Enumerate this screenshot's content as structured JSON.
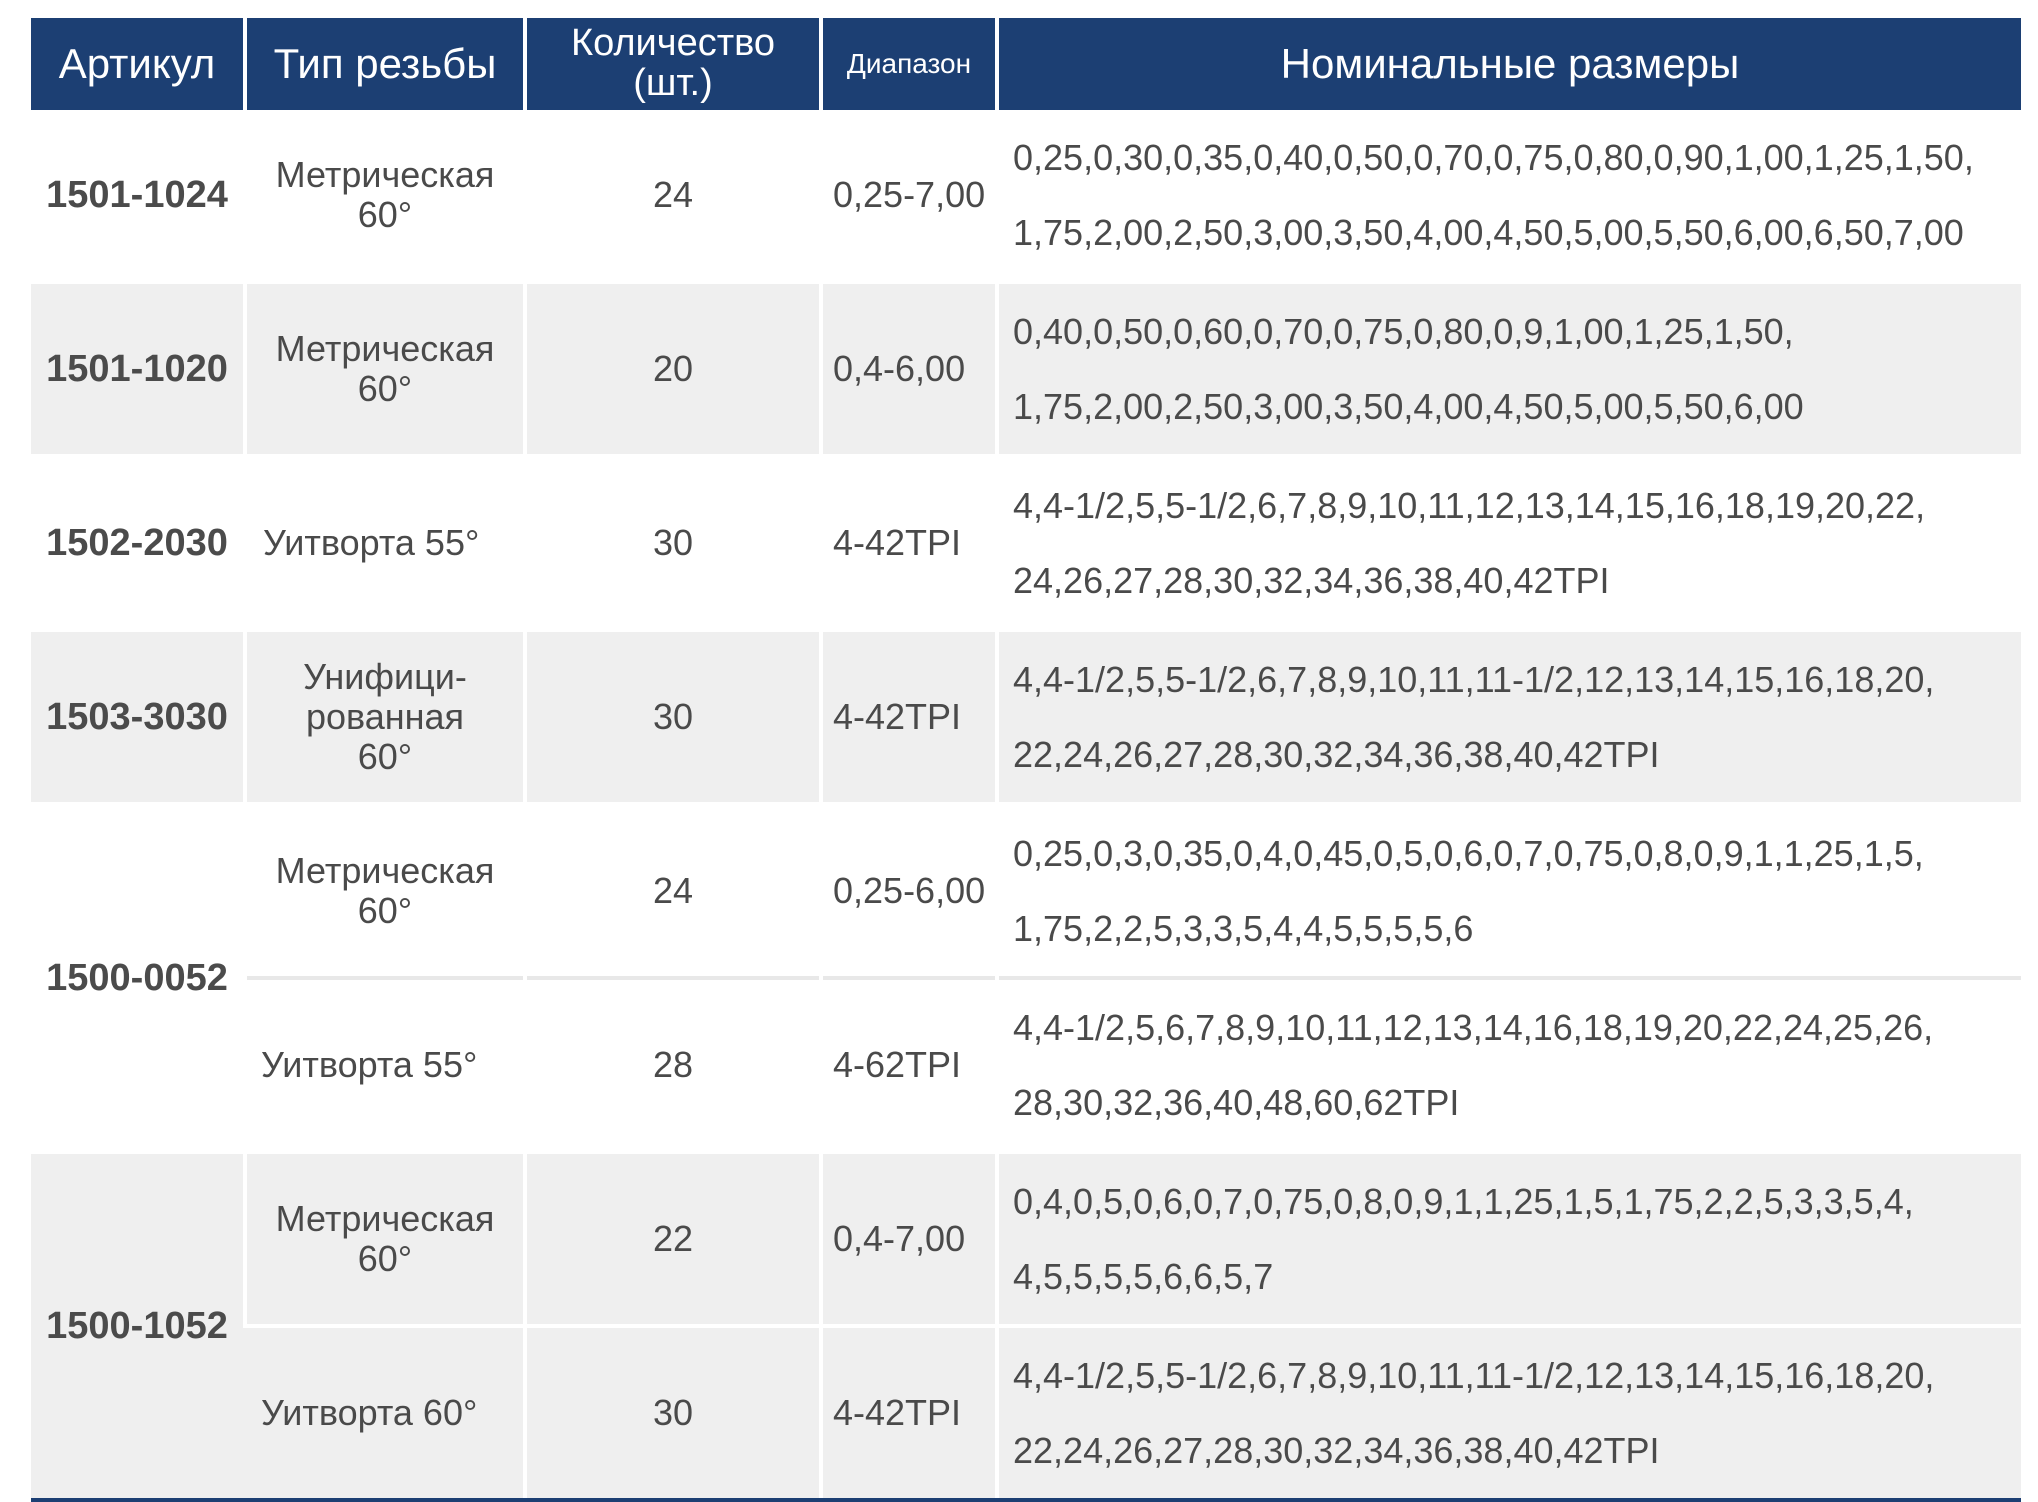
{
  "table": {
    "headers": {
      "article": "Артикул",
      "thread_type": "Тип резьбы",
      "quantity_line1": "Количество",
      "quantity_line2": "(шт.)",
      "range": "Диапазон",
      "nominal_sizes": "Номинальные размеры"
    },
    "rows": [
      {
        "article": "1501-1024",
        "type_line1": "Метрическая",
        "type_line2": "60°",
        "quantity": "24",
        "range": "0,25-7,00",
        "sizes_line1": "0,25,0,30,0,35,0,40,0,50,0,70,0,75,0,80,0,90,1,00,1,25,1,50,",
        "sizes_line2": "1,75,2,00,2,50,3,00,3,50,4,00,4,50,5,00,5,50,6,00,6,50,7,00"
      },
      {
        "article": "1501-1020",
        "type_line1": "Метрическая",
        "type_line2": "60°",
        "quantity": "20",
        "range": "0,4-6,00",
        "sizes_line1": "0,40,0,50,0,60,0,70,0,75,0,80,0,9,1,00,1,25,1,50,",
        "sizes_line2": "1,75,2,00,2,50,3,00,3,50,4,00,4,50,5,00,5,50,6,00"
      },
      {
        "article": "1502-2030",
        "type": "Уитворта 55°",
        "quantity": "30",
        "range": "4-42TPI",
        "sizes_line1": "4,4-1/2,5,5-1/2,6,7,8,9,10,11,12,13,14,15,16,18,19,20,22,",
        "sizes_line2": "24,26,27,28,30,32,34,36,38,40,42TPI"
      },
      {
        "article": "1503-3030",
        "type_line1": "Унифици-",
        "type_line2": "рованная",
        "type_line3": "60°",
        "quantity": "30",
        "range": "4-42TPI",
        "sizes_line1": "4,4-1/2,5,5-1/2,6,7,8,9,10,11,11-1/2,12,13,14,15,16,18,20,",
        "sizes_line2": "22,24,26,27,28,30,32,34,36,38,40,42TPI"
      },
      {
        "article": "1500-0052",
        "sub": [
          {
            "type_line1": "Метрическая",
            "type_line2": "60°",
            "quantity": "24",
            "range": "0,25-6,00",
            "sizes_line1": "0,25,0,3,0,35,0,4,0,45,0,5,0,6,0,7,0,75,0,8,0,9,1,1,25,1,5,",
            "sizes_line2": "1,75,2,2,5,3,3,5,4,4,5,5,5,5,6"
          },
          {
            "type": "Уитворта 55°",
            "quantity": "28",
            "range": "4-62TPI",
            "sizes_line1": "4,4-1/2,5,6,7,8,9,10,11,12,13,14,16,18,19,20,22,24,25,26,",
            "sizes_line2": "28,30,32,36,40,48,60,62TPI"
          }
        ]
      },
      {
        "article": "1500-1052",
        "sub": [
          {
            "type_line1": "Метрическая",
            "type_line2": "60°",
            "quantity": "22",
            "range": "0,4-7,00",
            "sizes_line1": "0,4,0,5,0,6,0,7,0,75,0,8,0,9,1,1,25,1,5,1,75,2,2,5,3,3,5,4,",
            "sizes_line2": "4,5,5,5,5,6,6,5,7"
          },
          {
            "type": "Уитворта 60°",
            "quantity": "30",
            "range": "4-42TPI",
            "sizes_line1": "4,4-1/2,5,5-1/2,6,7,8,9,10,11,11-1/2,12,13,14,15,16,18,20,",
            "sizes_line2": "22,24,26,27,28,30,32,34,36,38,40,42TPI"
          }
        ]
      }
    ]
  }
}
